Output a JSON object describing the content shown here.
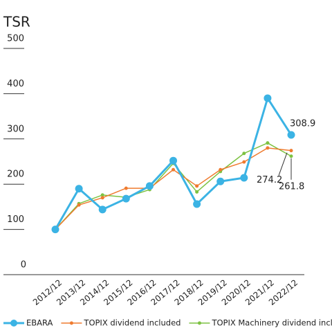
{
  "chart_data": {
    "type": "line",
    "title": "TSR",
    "categories": [
      "2012/12",
      "2013/12",
      "2014/12",
      "2015/12",
      "2016/12",
      "2017/12",
      "2018/12",
      "2019/12",
      "2020/12",
      "2021/12",
      "2022/12"
    ],
    "series": [
      {
        "name": "EBARA",
        "color": "#3bb3e4",
        "values": [
          100,
          190,
          144,
          168,
          196,
          252,
          156,
          206,
          214,
          390,
          308.9
        ]
      },
      {
        "name": "TOPIX dividend included",
        "color": "#ef7b2f",
        "values": [
          100,
          154,
          170,
          191,
          191,
          232,
          196,
          232,
          249,
          280,
          274.2
        ]
      },
      {
        "name": "TOPIX Machinery dividend included",
        "color": "#7dc242",
        "values": [
          100,
          157,
          176,
          171,
          188,
          246,
          183,
          228,
          268,
          291,
          261.8
        ]
      }
    ],
    "ylim": [
      0,
      500
    ],
    "yticks": [
      0,
      100,
      200,
      300,
      400,
      500
    ]
  }
}
